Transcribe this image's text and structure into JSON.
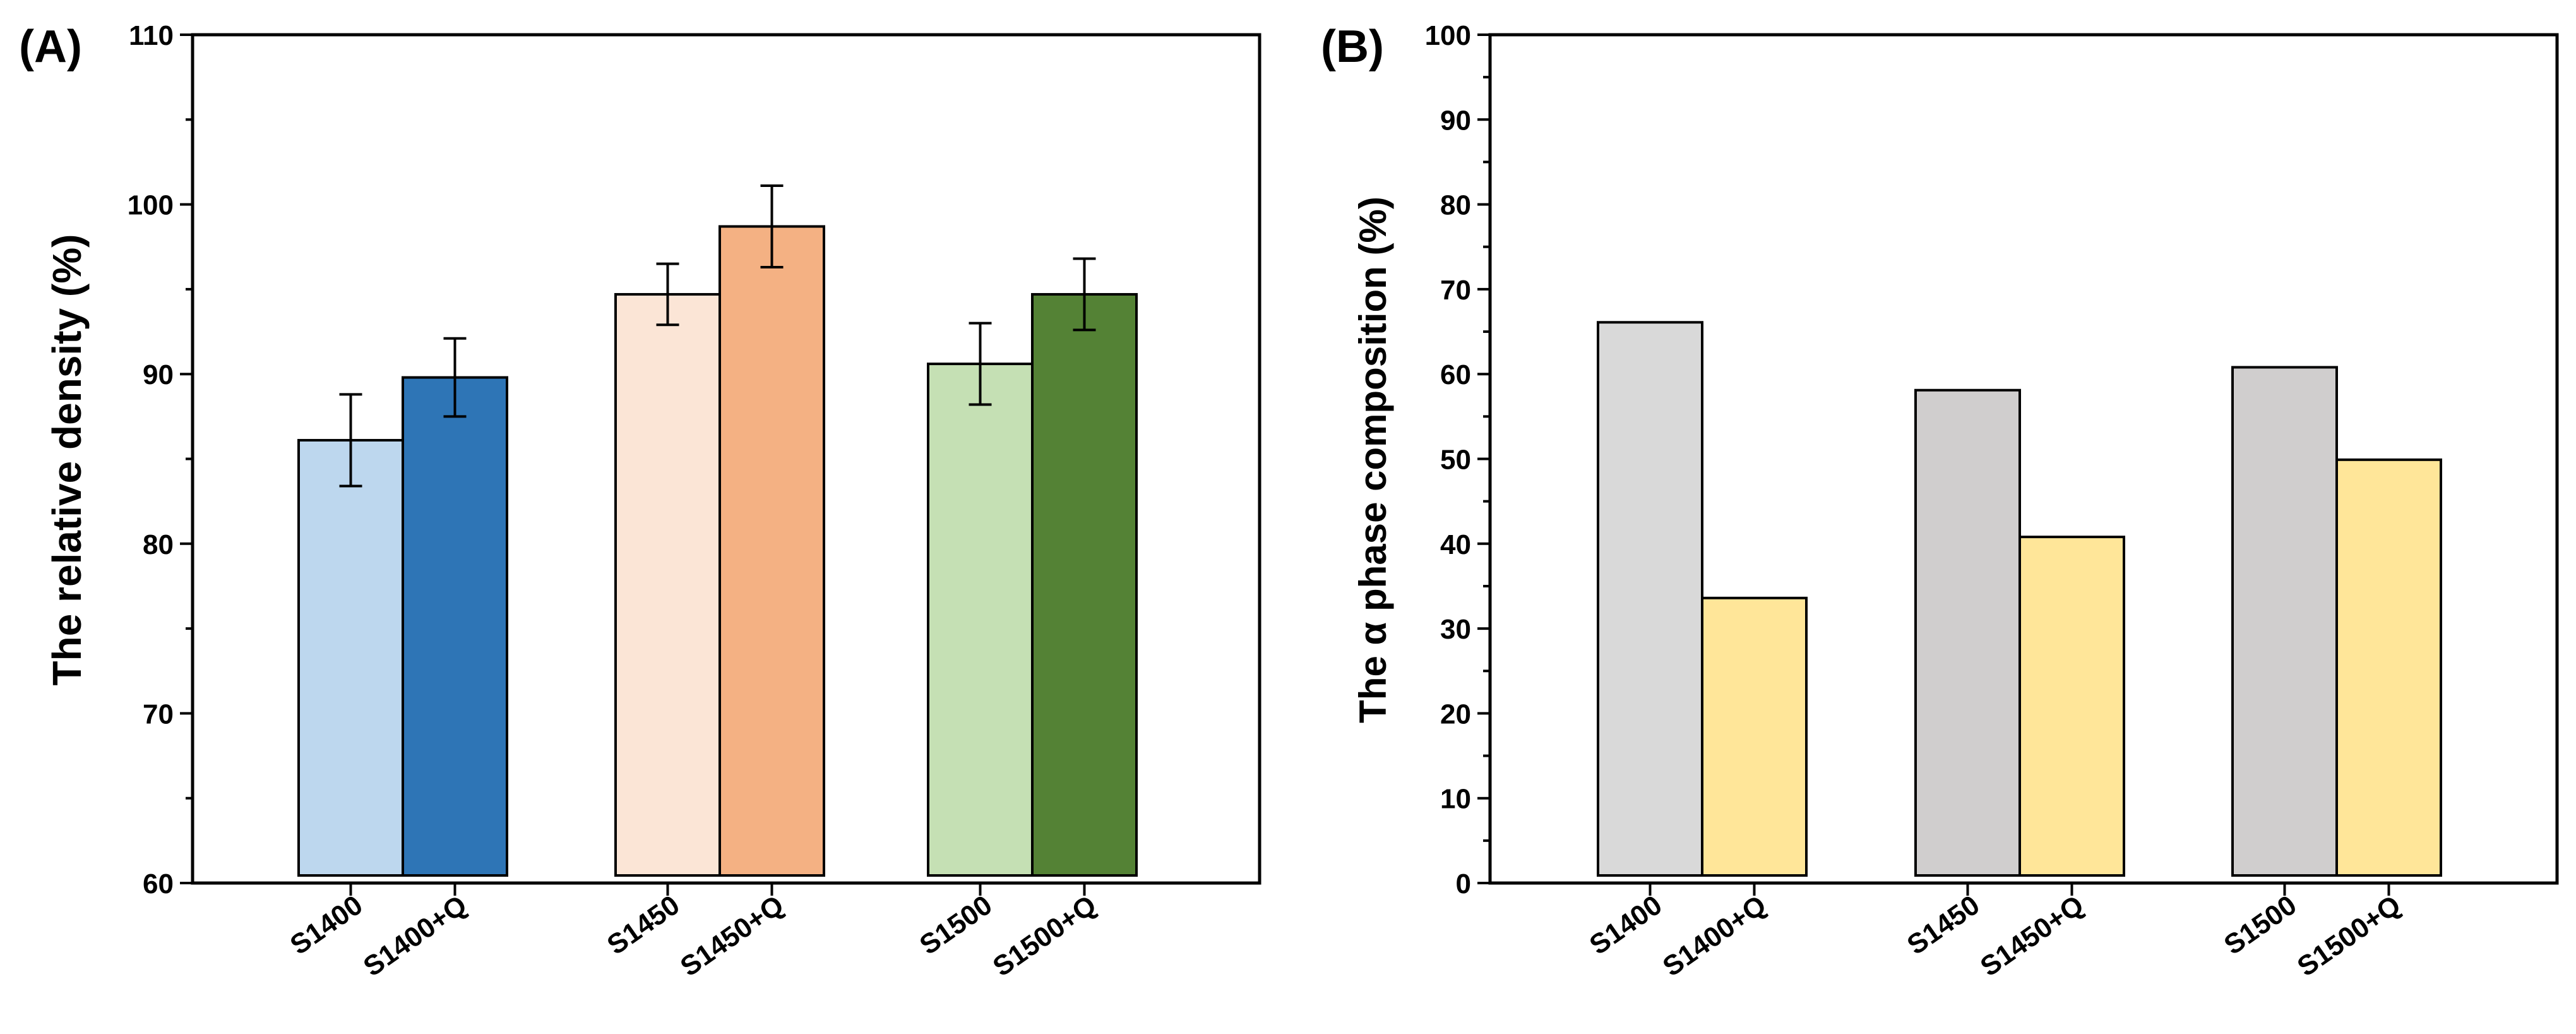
{
  "chart_data": [
    {
      "panel_label": "(A)",
      "type": "bar",
      "title": "",
      "xlabel": "",
      "ylabel": "The relative density (%)",
      "ylim": [
        60,
        110
      ],
      "yticks": [
        60,
        70,
        80,
        90,
        100,
        110
      ],
      "grid": false,
      "bars": [
        {
          "label": "S1400",
          "value": 86.1,
          "error": 2.7,
          "color": "#BDD7EE"
        },
        {
          "label": "S1400+Q",
          "value": 89.8,
          "error": 2.3,
          "color": "#2E75B6"
        },
        {
          "label": "S1450",
          "value": 94.7,
          "error": 1.8,
          "color": "#FBE5D6"
        },
        {
          "label": "S1450+Q",
          "value": 98.7,
          "error": 2.4,
          "color": "#F4B183"
        },
        {
          "label": "S1500",
          "value": 90.6,
          "error": 2.4,
          "color": "#C5E0B4"
        },
        {
          "label": "S1500+Q",
          "value": 94.7,
          "error": 2.1,
          "color": "#548235"
        }
      ]
    },
    {
      "panel_label": "(B)",
      "type": "bar",
      "title": "",
      "xlabel": "",
      "ylabel": "The α phase composition (%)",
      "ylim": [
        0,
        100
      ],
      "yticks": [
        0,
        10,
        20,
        30,
        40,
        50,
        60,
        70,
        80,
        90,
        100
      ],
      "grid": false,
      "bars": [
        {
          "label": "S1400",
          "value": 66.1,
          "color": "#D9D9D9"
        },
        {
          "label": "S1400+Q",
          "value": 33.6,
          "color": "#FFE699"
        },
        {
          "label": "S1450",
          "value": 58.1,
          "color": "#D0CECE"
        },
        {
          "label": "S1450+Q",
          "value": 40.8,
          "color": "#FFE699"
        },
        {
          "label": "S1500",
          "value": 60.8,
          "color": "#D0CECE"
        },
        {
          "label": "S1500+Q",
          "value": 49.9,
          "color": "#FFE699"
        }
      ]
    }
  ]
}
